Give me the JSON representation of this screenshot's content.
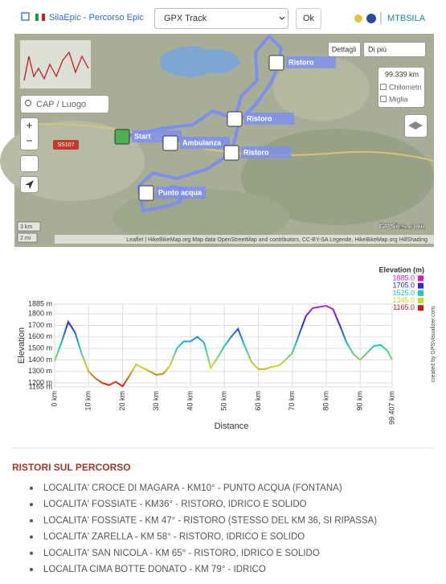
{
  "header": {
    "site": "SilaEpic - Percorso Epic",
    "track_select": "GPX Track",
    "ok_button": "Ok",
    "link": "MTBSILA"
  },
  "map": {
    "search_placeholder": "CAP / Luogo",
    "details_button": "Dettagli",
    "more_input": "Di più",
    "distance": "99.339 km",
    "units": [
      "Chilometri",
      "Miglia"
    ],
    "road": "SS107",
    "markers": [
      "Start",
      "Ambulanza",
      "Ristoro",
      "Ristoro",
      "Ristoro",
      "Punto acqua"
    ],
    "scale": [
      "3 km",
      "2 mi"
    ],
    "attribution": "Leaflet | HikeBikeMap.org Map data OpenStreetMap and contributors, CC-BY-SA Legende, HikeBikeMap.org HillShading",
    "brand": "GPSies.com"
  },
  "chart_data": {
    "type": "line",
    "x_label": "Distance",
    "y_label": "Elevation",
    "credit": "created by GPSVisualizer.com",
    "legend_title": "Elevation (m)",
    "color_scale": [
      {
        "value": 1885,
        "label": "1885.0",
        "color": "#d01ad0"
      },
      {
        "value": 1705,
        "label": "1705.0",
        "color": "#2a2ad8"
      },
      {
        "value": 1525,
        "label": "1525.0",
        "color": "#18c8c8"
      },
      {
        "value": 1345,
        "label": "1345.0",
        "color": "#c8d820"
      },
      {
        "value": 1165,
        "label": "1165.0",
        "color": "#c81818"
      }
    ],
    "x": [
      0,
      2,
      4,
      6,
      8,
      10,
      12,
      14,
      16,
      18,
      20,
      22,
      24,
      26,
      28,
      30,
      32,
      34,
      36,
      38,
      40,
      42,
      44,
      46,
      48,
      50,
      52,
      54,
      56,
      58,
      60,
      62,
      64,
      66,
      68,
      70,
      72,
      74,
      76,
      78,
      80,
      82,
      84,
      86,
      88,
      90,
      92,
      94,
      96,
      98,
      99.407
    ],
    "values": [
      1390,
      1550,
      1730,
      1640,
      1450,
      1300,
      1240,
      1200,
      1180,
      1210,
      1170,
      1260,
      1360,
      1330,
      1300,
      1270,
      1280,
      1350,
      1500,
      1560,
      1560,
      1600,
      1550,
      1330,
      1420,
      1520,
      1600,
      1670,
      1520,
      1380,
      1320,
      1320,
      1340,
      1350,
      1400,
      1460,
      1620,
      1780,
      1850,
      1860,
      1870,
      1840,
      1700,
      1550,
      1450,
      1400,
      1460,
      1520,
      1530,
      1480,
      1400
    ],
    "xlim": [
      0,
      99.407
    ],
    "ylim": [
      1165,
      1885
    ],
    "xticks": [
      {
        "value": 0,
        "label": "0 km"
      },
      {
        "value": 10,
        "label": "10 km"
      },
      {
        "value": 20,
        "label": "20 km"
      },
      {
        "value": 30,
        "label": "30 km"
      },
      {
        "value": 40,
        "label": "40 km"
      },
      {
        "value": 50,
        "label": "50 km"
      },
      {
        "value": 60,
        "label": "60 km"
      },
      {
        "value": 70,
        "label": "70 km"
      },
      {
        "value": 80,
        "label": "80 km"
      },
      {
        "value": 90,
        "label": "90 km"
      },
      {
        "value": 99.407,
        "label": "99.407 km"
      }
    ],
    "yticks": [
      {
        "value": 1165,
        "label": "1165 m"
      },
      {
        "value": 1200,
        "label": "1200 m"
      },
      {
        "value": 1300,
        "label": "1300 m"
      },
      {
        "value": 1400,
        "label": "1400 m"
      },
      {
        "value": 1500,
        "label": "1500 m"
      },
      {
        "value": 1600,
        "label": "1600 m"
      },
      {
        "value": 1700,
        "label": "1700 m"
      },
      {
        "value": 1800,
        "label": "1800 m"
      },
      {
        "value": 1885,
        "label": "1885 m"
      }
    ],
    "grid": true
  },
  "section": {
    "title": "RISTORI SUL PERCORSO",
    "items": [
      "LOCALITA' CROCE DI MAGARA - KM10° - PUNTO ACQUA (FONTANA)",
      "LOCALITA' FOSSIATE - KM36° - RISTORO, IDRICO E SOLIDO",
      "LOCALITA' FOSSIATE - KM 47° - RISTORO (STESSO DEL KM 36, SI RIPASSA)",
      "LOCALITA' ZARELLA - KM 58° - RISTORO, IDRICO E SOLIDO",
      "LOCALITA' SAN NICOLA - KM 65° - RISTORO, IDRICO E SOLIDO",
      "LOCALITA CIMA BOTTE DONATO - KM 79° - IDRICO"
    ]
  }
}
